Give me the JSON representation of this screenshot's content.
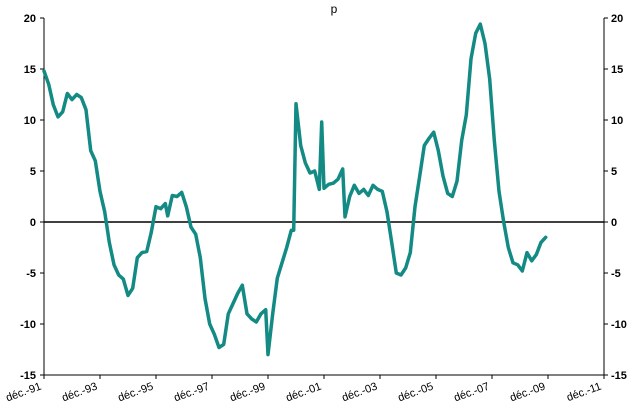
{
  "chart_data": {
    "type": "line",
    "title": "p",
    "xlabel": "",
    "ylabel": "",
    "ylim": [
      -15,
      20
    ],
    "yticks": [
      -15,
      -10,
      -5,
      0,
      5,
      10,
      15,
      20
    ],
    "ytick_labels": [
      "-15",
      "-10",
      "-5",
      "0",
      "5",
      "10",
      "15",
      "20"
    ],
    "dual_y_axis": true,
    "xlim": [
      "1991-12",
      "2011-12"
    ],
    "xticks": [
      "1991-12",
      "1993-12",
      "1995-12",
      "1997-12",
      "1999-12",
      "2001-12",
      "2003-12",
      "2005-12",
      "2007-12",
      "2009-12",
      "2011-12"
    ],
    "xtick_labels": [
      "déc.-91",
      "déc.-93",
      "déc.-95",
      "déc.-97",
      "déc.-99",
      "déc.-01",
      "déc.-03",
      "déc.-05",
      "déc.-07",
      "déc.-09",
      "déc.-11"
    ],
    "grid": false,
    "zero_line": true,
    "series": [
      {
        "color": "#138a84",
        "points": [
          [
            "1991-12",
            14.8
          ],
          [
            "1992-02",
            13.5
          ],
          [
            "1992-04",
            11.5
          ],
          [
            "1992-06",
            10.3
          ],
          [
            "1992-08",
            10.8
          ],
          [
            "1992-10",
            12.6
          ],
          [
            "1992-12",
            12.0
          ],
          [
            "1993-02",
            12.5
          ],
          [
            "1993-04",
            12.2
          ],
          [
            "1993-06",
            11.0
          ],
          [
            "1993-08",
            7.0
          ],
          [
            "1993-10",
            6.0
          ],
          [
            "1993-12",
            3.0
          ],
          [
            "1994-02",
            1.0
          ],
          [
            "1994-04",
            -2.0
          ],
          [
            "1994-06",
            -4.2
          ],
          [
            "1994-08",
            -5.2
          ],
          [
            "1994-10",
            -5.6
          ],
          [
            "1994-12",
            -7.2
          ],
          [
            "1995-02",
            -6.5
          ],
          [
            "1995-04",
            -3.5
          ],
          [
            "1995-06",
            -3.0
          ],
          [
            "1995-08",
            -2.9
          ],
          [
            "1995-10",
            -1.0
          ],
          [
            "1995-12",
            1.5
          ],
          [
            "1996-02",
            1.3
          ],
          [
            "1996-04",
            1.8
          ],
          [
            "1996-05",
            0.6
          ],
          [
            "1996-07",
            2.6
          ],
          [
            "1996-09",
            2.5
          ],
          [
            "1996-11",
            2.9
          ],
          [
            "1997-01",
            1.5
          ],
          [
            "1997-03",
            -0.5
          ],
          [
            "1997-05",
            -1.2
          ],
          [
            "1997-07",
            -3.5
          ],
          [
            "1997-09",
            -7.5
          ],
          [
            "1997-11",
            -10.0
          ],
          [
            "1998-01",
            -11.0
          ],
          [
            "1998-03",
            -12.3
          ],
          [
            "1998-05",
            -12.0
          ],
          [
            "1998-07",
            -9.0
          ],
          [
            "1998-09",
            -8.0
          ],
          [
            "1998-11",
            -7.0
          ],
          [
            "1999-01",
            -6.2
          ],
          [
            "1999-03",
            -9.0
          ],
          [
            "1999-05",
            -9.5
          ],
          [
            "1999-07",
            -9.8
          ],
          [
            "1999-09",
            -9.0
          ],
          [
            "1999-11",
            -8.6
          ],
          [
            "1999-12",
            -13.0
          ],
          [
            "2000-02",
            -9.0
          ],
          [
            "2000-04",
            -5.5
          ],
          [
            "2000-06",
            -4.0
          ],
          [
            "2000-08",
            -2.5
          ],
          [
            "2000-10",
            -0.8
          ],
          [
            "2000-11",
            -0.8
          ],
          [
            "2000-12",
            11.6
          ],
          [
            "2001-02",
            7.5
          ],
          [
            "2001-04",
            5.8
          ],
          [
            "2001-06",
            4.8
          ],
          [
            "2001-08",
            5.0
          ],
          [
            "2001-10",
            3.2
          ],
          [
            "2001-11",
            9.8
          ],
          [
            "2001-12",
            3.3
          ],
          [
            "2002-02",
            3.7
          ],
          [
            "2002-04",
            3.8
          ],
          [
            "2002-06",
            4.2
          ],
          [
            "2002-08",
            5.2
          ],
          [
            "2002-09",
            0.5
          ],
          [
            "2002-11",
            2.5
          ],
          [
            "2003-01",
            3.6
          ],
          [
            "2003-03",
            2.8
          ],
          [
            "2003-05",
            3.2
          ],
          [
            "2003-07",
            2.6
          ],
          [
            "2003-09",
            3.6
          ],
          [
            "2003-11",
            3.2
          ],
          [
            "2004-01",
            3.0
          ],
          [
            "2004-03",
            1.0
          ],
          [
            "2004-05",
            -2.0
          ],
          [
            "2004-07",
            -5.0
          ],
          [
            "2004-09",
            -5.2
          ],
          [
            "2004-11",
            -4.5
          ],
          [
            "2005-01",
            -3.0
          ],
          [
            "2005-03",
            1.5
          ],
          [
            "2005-05",
            4.5
          ],
          [
            "2005-07",
            7.5
          ],
          [
            "2005-09",
            8.2
          ],
          [
            "2005-11",
            8.8
          ],
          [
            "2006-01",
            7.0
          ],
          [
            "2006-03",
            4.5
          ],
          [
            "2006-05",
            2.8
          ],
          [
            "2006-07",
            2.5
          ],
          [
            "2006-09",
            4.0
          ],
          [
            "2006-11",
            8.0
          ],
          [
            "2007-01",
            10.5
          ],
          [
            "2007-03",
            16.0
          ],
          [
            "2007-05",
            18.5
          ],
          [
            "2007-07",
            19.4
          ],
          [
            "2007-09",
            17.5
          ],
          [
            "2007-11",
            14.0
          ],
          [
            "2008-01",
            8.0
          ],
          [
            "2008-03",
            3.0
          ],
          [
            "2008-05",
            0.0
          ],
          [
            "2008-07",
            -2.5
          ],
          [
            "2008-09",
            -4.0
          ],
          [
            "2008-11",
            -4.2
          ],
          [
            "2009-01",
            -4.8
          ],
          [
            "2009-03",
            -3.0
          ],
          [
            "2009-05",
            -3.8
          ],
          [
            "2009-07",
            -3.2
          ],
          [
            "2009-09",
            -2.0
          ],
          [
            "2009-11",
            -1.5
          ]
        ]
      }
    ]
  }
}
